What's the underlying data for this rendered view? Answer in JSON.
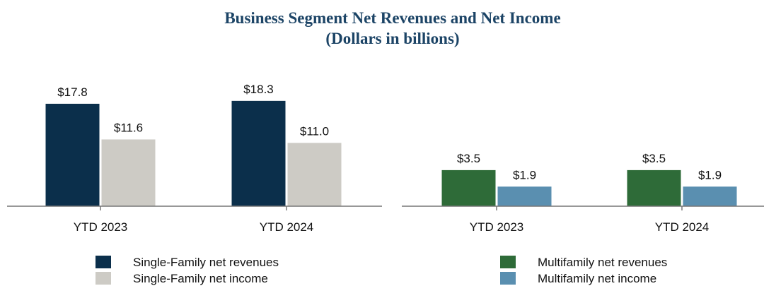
{
  "title": "Business Segment Net Revenues and Net Income",
  "subtitle": "(Dollars in billions)",
  "chart_data": [
    {
      "type": "bar",
      "categories": [
        "YTD 2023",
        "YTD 2024"
      ],
      "series": [
        {
          "name": "Single-Family net revenues",
          "color": "#0b2f4b",
          "values": [
            17.8,
            18.3
          ],
          "value_labels": [
            "$17.8",
            "$18.3"
          ]
        },
        {
          "name": "Single-Family net income",
          "color": "#cdcbc5",
          "values": [
            11.6,
            11.0
          ],
          "value_labels": [
            "$11.6",
            "$11.0"
          ]
        }
      ],
      "ylim": [
        0,
        20
      ]
    },
    {
      "type": "bar",
      "categories": [
        "YTD 2023",
        "YTD 2024"
      ],
      "series": [
        {
          "name": "Multifamily net revenues",
          "color": "#2e6b38",
          "values": [
            3.5,
            3.5
          ],
          "value_labels": [
            "$3.5",
            "$3.5"
          ]
        },
        {
          "name": "Multifamily net income",
          "color": "#5a8fb0",
          "values": [
            1.9,
            1.9
          ],
          "value_labels": [
            "$1.9",
            "$1.9"
          ]
        }
      ],
      "ylim": [
        0,
        10
      ]
    }
  ]
}
